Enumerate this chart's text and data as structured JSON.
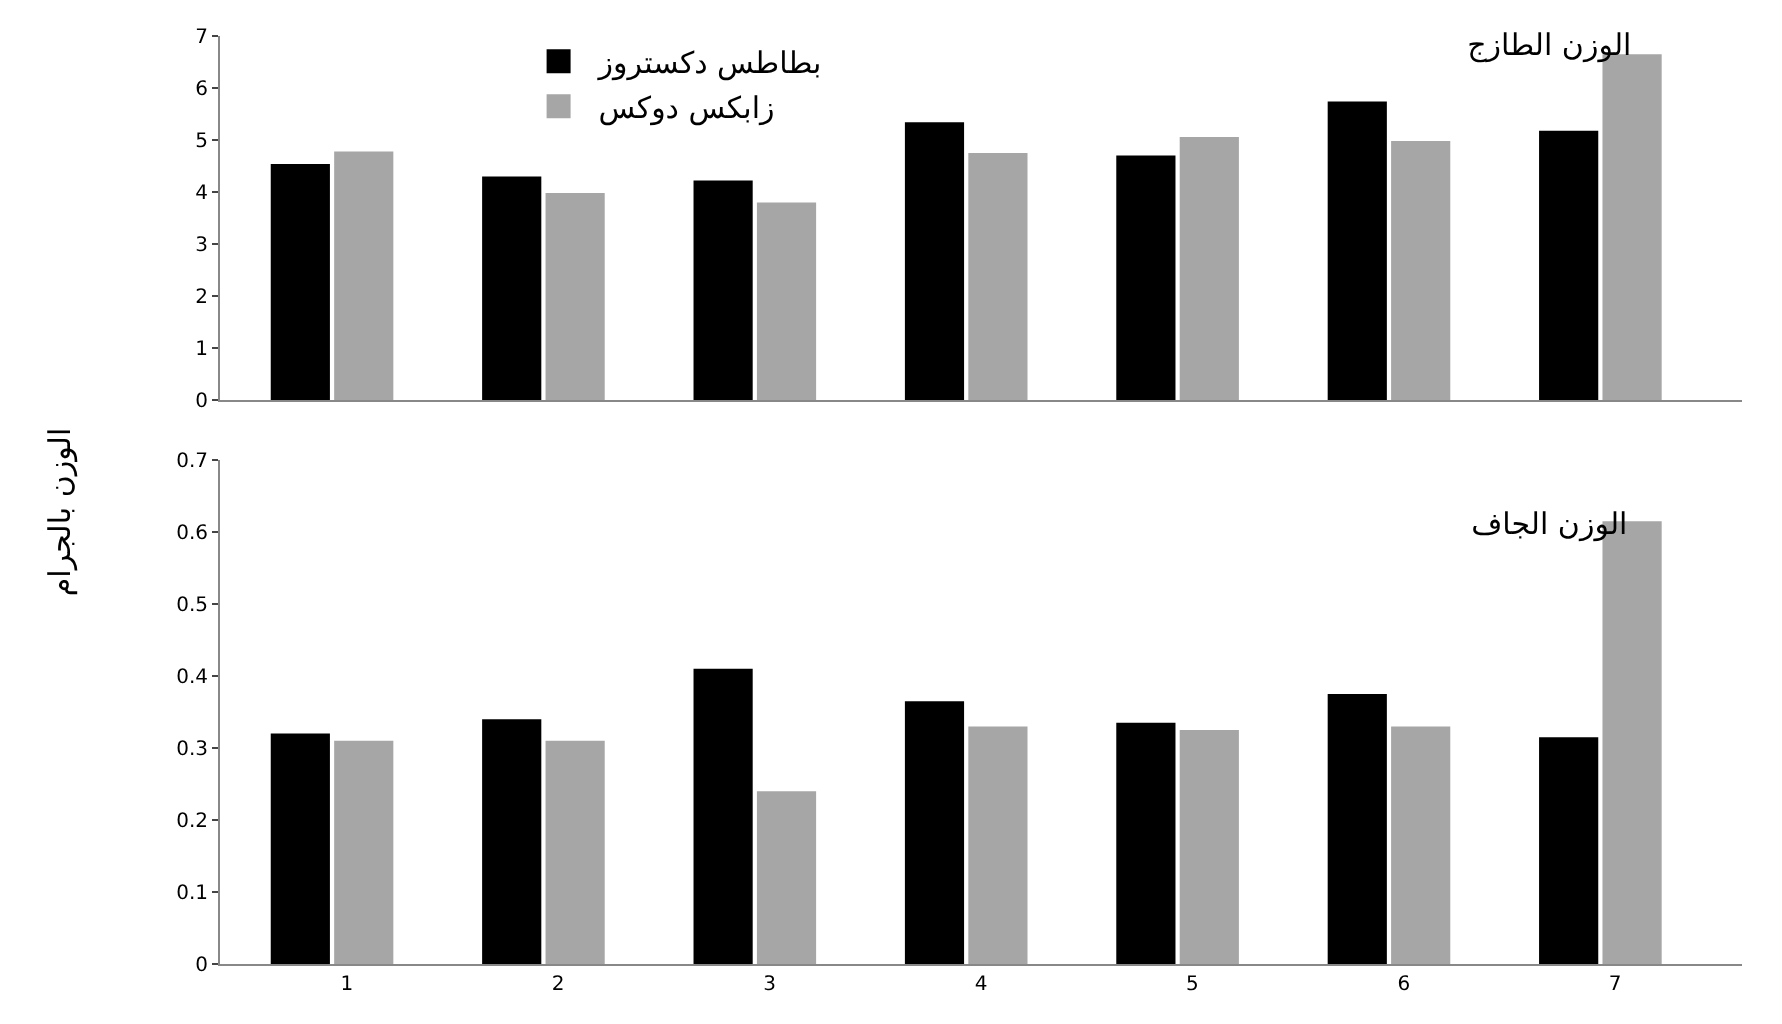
{
  "chart_data": [
    {
      "type": "bar",
      "title": "الوزن الطازج",
      "ylabel": "الوزن بالجرام",
      "categories": [
        "1",
        "2",
        "3",
        "4",
        "5",
        "6",
        "7"
      ],
      "series": [
        {
          "name": "بطاطس دكستروز",
          "color": "#000000",
          "values": [
            4.54,
            4.3,
            4.22,
            5.34,
            4.7,
            5.74,
            5.18
          ]
        },
        {
          "name": "زابكس دوكس",
          "color": "#a6a6a6",
          "values": [
            4.78,
            3.98,
            3.8,
            4.75,
            5.06,
            4.98,
            6.65
          ]
        }
      ],
      "ylim": [
        0,
        7
      ],
      "yticks": [
        0,
        1,
        2,
        3,
        4,
        5,
        6,
        7
      ],
      "tick_labels": "y",
      "legend": "top",
      "grid": false
    },
    {
      "type": "bar",
      "title": "الوزن الجاف",
      "categories": [
        "1",
        "2",
        "3",
        "4",
        "5",
        "6",
        "7"
      ],
      "series": [
        {
          "color": "#000000",
          "values": [
            0.32,
            0.34,
            0.41,
            0.365,
            0.335,
            0.375,
            0.315
          ]
        },
        {
          "color": "#a6a6a6",
          "values": [
            0.31,
            0.31,
            0.24,
            0.33,
            0.325,
            0.33,
            0.615
          ]
        }
      ],
      "ylim": [
        0,
        0.7
      ],
      "yticks": [
        0,
        0.1,
        0.2,
        0.3,
        0.4,
        0.5,
        0.6,
        0.7
      ],
      "legend": false,
      "grid": false
    }
  ]
}
